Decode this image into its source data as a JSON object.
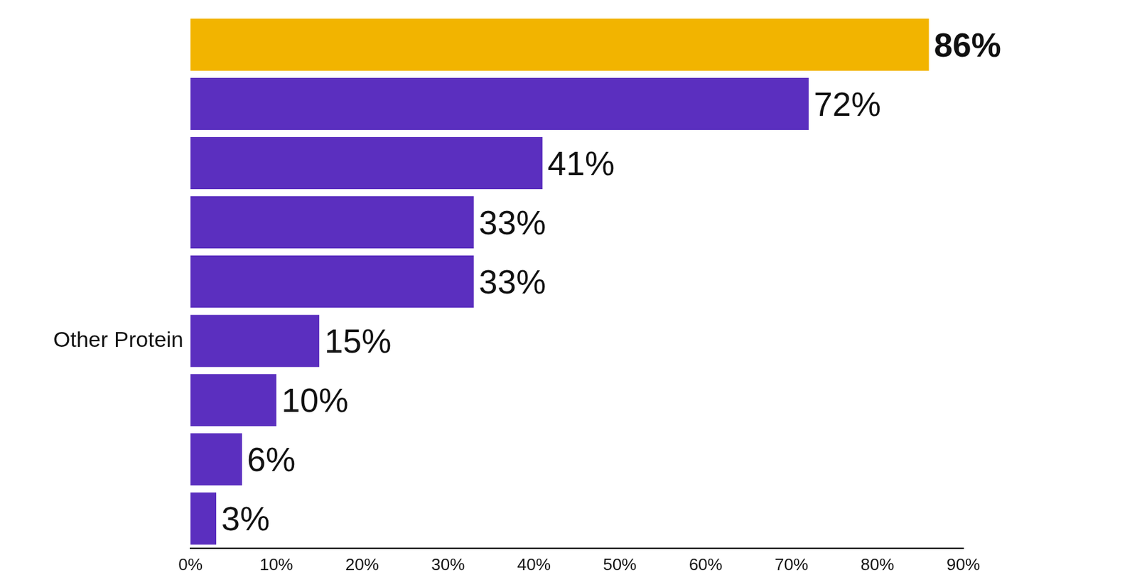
{
  "chart_data": {
    "type": "bar",
    "orientation": "horizontal",
    "categories": [
      null,
      null,
      null,
      null,
      null,
      "Other Protein",
      null,
      null,
      null
    ],
    "values": [
      86,
      72,
      41,
      33,
      33,
      15,
      10,
      6,
      3
    ],
    "value_labels": [
      "86%",
      "72%",
      "41%",
      "33%",
      "33%",
      "15%",
      "10%",
      "6%",
      "3%"
    ],
    "colors": [
      "#f2b400",
      "#5b2fbf",
      "#5b2fbf",
      "#5b2fbf",
      "#5b2fbf",
      "#5b2fbf",
      "#5b2fbf",
      "#5b2fbf",
      "#5b2fbf"
    ],
    "xlim": [
      0,
      90
    ],
    "xticks": [
      {
        "value": 0,
        "label": "0%"
      },
      {
        "value": 10,
        "label": "10%"
      },
      {
        "value": 20,
        "label": "20%"
      },
      {
        "value": 30,
        "label": "30%"
      },
      {
        "value": 40,
        "label": "40%"
      },
      {
        "value": 50,
        "label": "50%"
      },
      {
        "value": 60,
        "label": "60%"
      },
      {
        "value": 70,
        "label": "70%"
      },
      {
        "value": 80,
        "label": "80%"
      },
      {
        "value": 90,
        "label": "90%"
      }
    ],
    "grid": false,
    "data_labels": true
  }
}
